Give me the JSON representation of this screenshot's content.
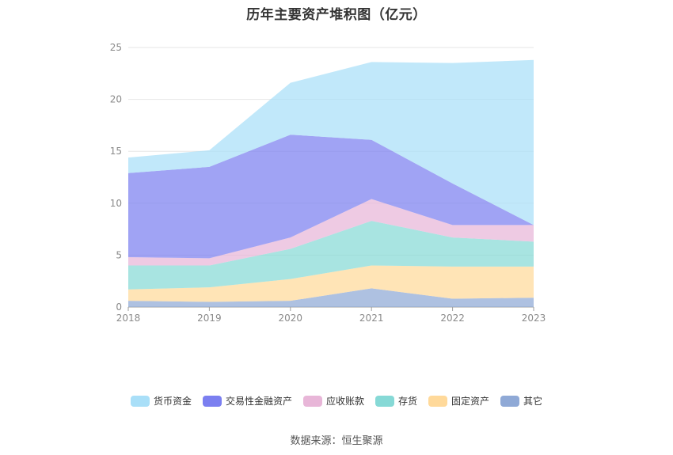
{
  "chart_data": {
    "type": "area",
    "stacked": true,
    "title": "历年主要资产堆积图（亿元）",
    "x": [
      "2018",
      "2019",
      "2020",
      "2021",
      "2022",
      "2023"
    ],
    "ylim": [
      0,
      25
    ],
    "yticks": [
      "0",
      "5",
      "10",
      "15",
      "20",
      "25"
    ],
    "grid": true,
    "legend_position": "bottom",
    "series": [
      {
        "name": "其它",
        "color": "#8fa9d6",
        "values": [
          0.6,
          0.5,
          0.6,
          1.8,
          0.8,
          0.9
        ]
      },
      {
        "name": "固定资产",
        "color": "#ffd99a",
        "values": [
          1.1,
          1.4,
          2.1,
          2.2,
          3.1,
          3.0
        ]
      },
      {
        "name": "存货",
        "color": "#86d9d6",
        "values": [
          2.3,
          2.1,
          2.9,
          4.3,
          2.8,
          2.4
        ]
      },
      {
        "name": "应收账款",
        "color": "#e8b6d8",
        "values": [
          0.8,
          0.7,
          1.1,
          2.1,
          1.2,
          1.6
        ]
      },
      {
        "name": "交易性金融资产",
        "color": "#7b7ff0",
        "values": [
          8.1,
          8.8,
          9.9,
          5.7,
          4.0,
          0.0
        ]
      },
      {
        "name": "货币资金",
        "color": "#a9dff8",
        "values": [
          1.5,
          1.6,
          5.0,
          7.5,
          11.6,
          15.9
        ]
      }
    ]
  },
  "legend_order": [
    "货币资金",
    "交易性金融资产",
    "应收账款",
    "存货",
    "固定资产",
    "其它"
  ],
  "source": "数据来源：恒生聚源"
}
